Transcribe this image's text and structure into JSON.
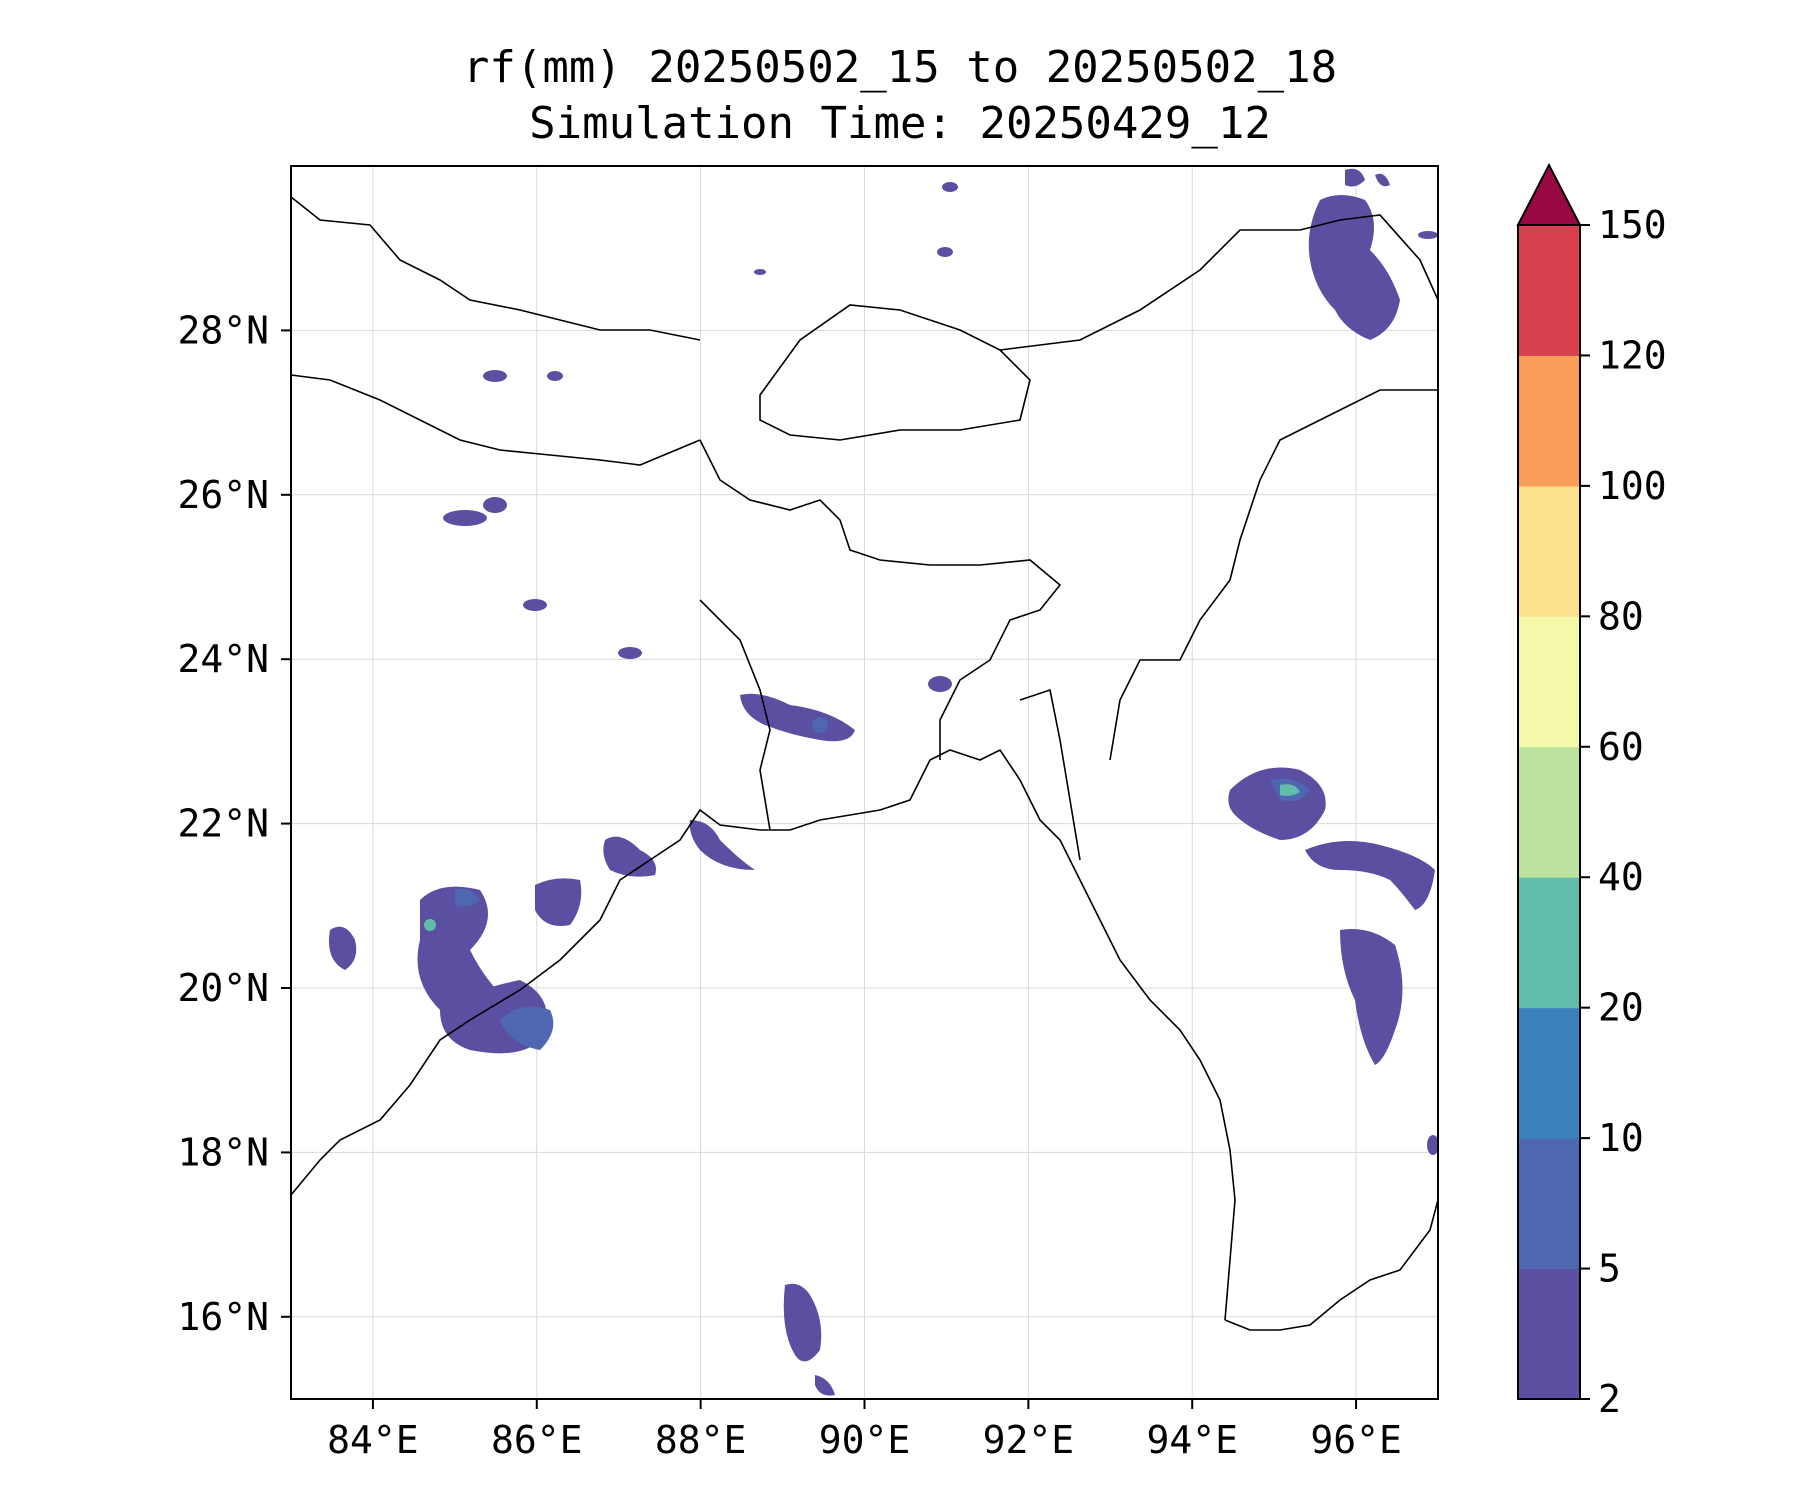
{
  "title": {
    "line1": "rf(mm) 20250502_15 to 20250502_18",
    "line2": "Simulation Time: 20250429_12"
  },
  "map": {
    "lon_range": [
      83,
      97
    ],
    "lat_range": [
      15,
      30
    ],
    "lon_ticks": [
      84,
      86,
      88,
      90,
      92,
      94,
      96
    ],
    "lon_tick_labels": [
      "84°E",
      "86°E",
      "88°E",
      "90°E",
      "92°E",
      "94°E",
      "96°E"
    ],
    "lat_ticks": [
      16,
      18,
      20,
      22,
      24,
      26,
      28
    ],
    "lat_tick_labels": [
      "16°N",
      "18°N",
      "20°N",
      "22°N",
      "24°N",
      "26°N",
      "28°N"
    ],
    "grid": true
  },
  "colorbar": {
    "levels": [
      2,
      5,
      10,
      20,
      40,
      60,
      80,
      100,
      120,
      150
    ],
    "labels": [
      "2",
      "5",
      "10",
      "20",
      "40",
      "60",
      "80",
      "100",
      "120",
      "150"
    ],
    "colors": [
      "#5a4fa1",
      "#4f67b0",
      "#3b82bc",
      "#61bdaa",
      "#bde2a0",
      "#f4f9a9",
      "#fce08c",
      "#fa9d59",
      "#d7404c"
    ],
    "extend_color": "#9a0842",
    "extend": "max"
  },
  "colors": {
    "coast": "#000000",
    "grid": "#d9d9d9"
  }
}
